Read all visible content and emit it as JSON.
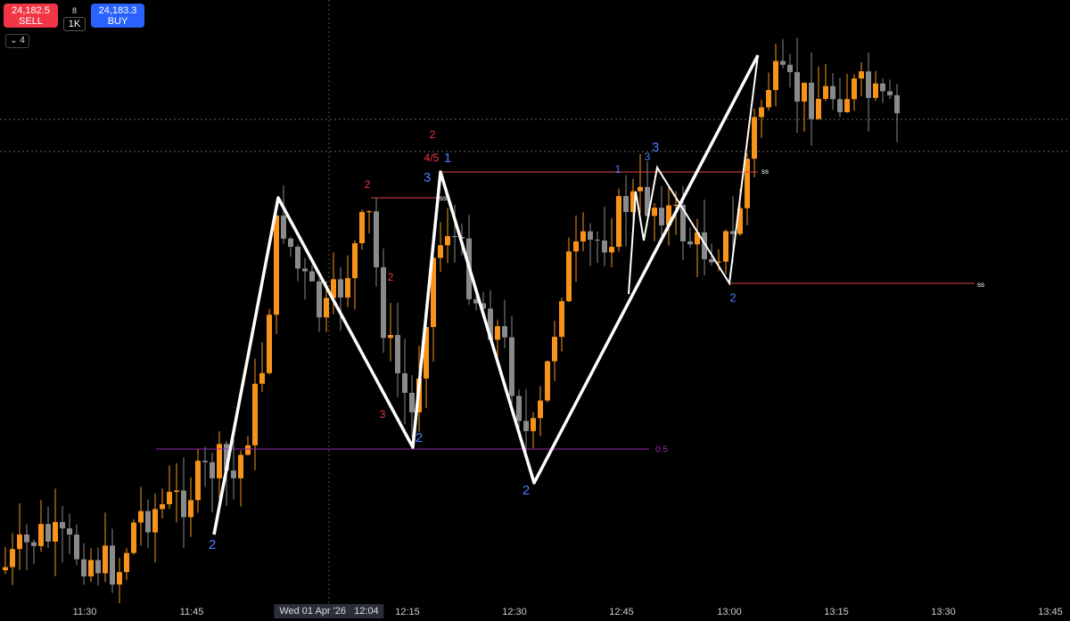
{
  "header": {
    "sell_price": "24,182.5",
    "sell_label": "SELL",
    "quantity_top": "8",
    "quantity": "1K",
    "buy_price": "24,183.3",
    "buy_label": "BUY",
    "indicator_count": "4"
  },
  "time_axis": {
    "labels": [
      "11:30",
      "11:45",
      "12:15",
      "12:30",
      "12:45",
      "13:00",
      "13:15",
      "13:30",
      "13:45"
    ],
    "crosshair_label": "Wed 01 Apr '26   12:04"
  },
  "annotations": [
    "2",
    "4/5",
    "1",
    "3",
    "2",
    "ss",
    "2",
    "3",
    "2",
    "2",
    "2",
    "1",
    "3",
    "3",
    "ss",
    "2",
    "ss",
    "0.5"
  ]
}
